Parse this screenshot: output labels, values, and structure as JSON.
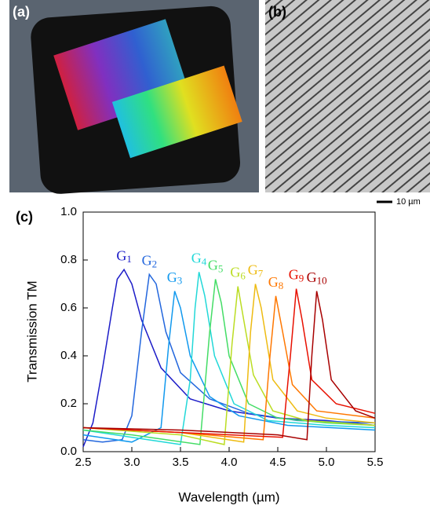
{
  "panel_labels": [
    "(a)",
    "(b)",
    "(c)"
  ],
  "scale_bar": "10 µm",
  "chart_data": {
    "type": "line",
    "xlabel": "Wavelength (µm)",
    "ylabel": "Transmission TM",
    "xlim": [
      2.5,
      5.5
    ],
    "ylim": [
      0,
      1
    ],
    "xticks": [
      2.5,
      {
        "value": 3,
        "label": "3.0"
      },
      3.5,
      {
        "value": 4,
        "label": "4.0"
      },
      4.5,
      {
        "value": 5,
        "label": "5.0"
      },
      5.5
    ],
    "yticks": [
      {
        "value": 0,
        "label": "0.0"
      },
      0.2,
      0.4,
      0.6,
      0.8,
      {
        "value": 1,
        "label": "1.0"
      }
    ],
    "series": [
      {
        "name": "G1",
        "color": "#1c1cc8",
        "x": [
          2.5,
          2.6,
          2.7,
          2.8,
          2.85,
          2.92,
          3.0,
          3.1,
          3.3,
          3.6,
          4.0,
          4.5,
          5.0,
          5.5
        ],
        "values": [
          0.02,
          0.12,
          0.35,
          0.6,
          0.72,
          0.76,
          0.7,
          0.55,
          0.35,
          0.22,
          0.17,
          0.14,
          0.13,
          0.11
        ]
      },
      {
        "name": "G2",
        "color": "#2266dd",
        "x": [
          2.5,
          2.7,
          2.9,
          3.0,
          3.1,
          3.18,
          3.25,
          3.35,
          3.5,
          3.8,
          4.2,
          4.7,
          5.5
        ],
        "values": [
          0.05,
          0.04,
          0.05,
          0.15,
          0.5,
          0.74,
          0.7,
          0.5,
          0.33,
          0.22,
          0.16,
          0.13,
          0.12
        ]
      },
      {
        "name": "G3",
        "color": "#1199ee",
        "x": [
          2.5,
          3.0,
          3.3,
          3.38,
          3.44,
          3.5,
          3.6,
          3.8,
          4.1,
          4.6,
          5.5
        ],
        "values": [
          0.07,
          0.04,
          0.1,
          0.45,
          0.67,
          0.6,
          0.4,
          0.23,
          0.15,
          0.11,
          0.09
        ]
      },
      {
        "name": "G4",
        "color": "#22d8d8",
        "x": [
          2.5,
          3.0,
          3.5,
          3.6,
          3.65,
          3.69,
          3.75,
          3.85,
          4.05,
          4.4,
          5.0,
          5.5
        ],
        "values": [
          0.09,
          0.06,
          0.03,
          0.3,
          0.6,
          0.75,
          0.65,
          0.4,
          0.2,
          0.13,
          0.11,
          0.1
        ]
      },
      {
        "name": "G5",
        "color": "#44dd66",
        "x": [
          2.5,
          3.0,
          3.7,
          3.8,
          3.86,
          3.92,
          4.0,
          4.2,
          4.5,
          5.0,
          5.5
        ],
        "values": [
          0.09,
          0.07,
          0.03,
          0.5,
          0.72,
          0.62,
          0.4,
          0.2,
          0.14,
          0.12,
          0.11
        ]
      },
      {
        "name": "G6",
        "color": "#bbdd22",
        "x": [
          2.5,
          3.5,
          3.95,
          4.03,
          4.09,
          4.15,
          4.25,
          4.45,
          4.8,
          5.5
        ],
        "values": [
          0.1,
          0.07,
          0.03,
          0.45,
          0.69,
          0.55,
          0.32,
          0.17,
          0.13,
          0.11
        ]
      },
      {
        "name": "G7",
        "color": "#eebb11",
        "x": [
          2.5,
          3.5,
          4.15,
          4.22,
          4.27,
          4.33,
          4.45,
          4.7,
          5.0,
          5.5
        ],
        "values": [
          0.1,
          0.08,
          0.04,
          0.5,
          0.7,
          0.6,
          0.3,
          0.17,
          0.14,
          0.12
        ]
      },
      {
        "name": "G8",
        "color": "#ff7700",
        "x": [
          2.5,
          3.5,
          4.35,
          4.42,
          4.48,
          4.55,
          4.65,
          4.9,
          5.5
        ],
        "values": [
          0.1,
          0.08,
          0.05,
          0.4,
          0.65,
          0.5,
          0.28,
          0.17,
          0.14
        ]
      },
      {
        "name": "G9",
        "color": "#e81000",
        "x": [
          2.5,
          3.5,
          4.55,
          4.63,
          4.69,
          4.75,
          4.85,
          5.1,
          5.5
        ],
        "values": [
          0.1,
          0.08,
          0.06,
          0.4,
          0.68,
          0.55,
          0.3,
          0.2,
          0.16
        ]
      },
      {
        "name": "G10",
        "color": "#a80000",
        "x": [
          2.5,
          3.5,
          4.5,
          4.8,
          4.85,
          4.9,
          4.96,
          5.05,
          5.3,
          5.5
        ],
        "values": [
          0.1,
          0.09,
          0.07,
          0.05,
          0.4,
          0.67,
          0.55,
          0.3,
          0.17,
          0.14
        ]
      }
    ]
  }
}
